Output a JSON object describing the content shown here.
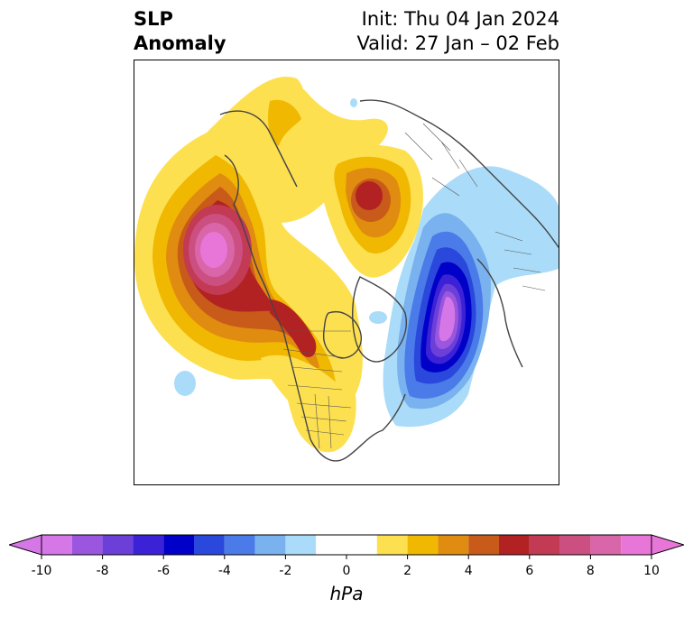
{
  "title": {
    "left_line1": "SLP",
    "left_line2": "Anomaly",
    "right_line1": "Init: Thu 04 Jan 2024",
    "right_line2": "Valid: 27 Jan – 02 Feb"
  },
  "map": {
    "projection": "polar-stereographic",
    "region": "Northern Hemisphere (North Pacific, North America, Arctic, Eurasia)",
    "anomaly_features": [
      {
        "type": "high",
        "location": "northeast Pacific / Gulf of Alaska",
        "peak_hPa": 10
      },
      {
        "type": "high",
        "location": "central Siberia",
        "peak_hPa": 6
      },
      {
        "type": "high",
        "location": "western Canada / Alaska panhandle",
        "peak_hPa": 6
      },
      {
        "type": "low",
        "location": "North Atlantic / Iceland",
        "peak_hPa": -10
      }
    ]
  },
  "colorbar": {
    "unit": "hPa",
    "ticks": [
      "-10",
      "-8",
      "-6",
      "-4",
      "-2",
      "0",
      "2",
      "4",
      "6",
      "8",
      "10"
    ],
    "bins": [
      {
        "from": -10,
        "to": -9,
        "color": "#d577e6"
      },
      {
        "from": -9,
        "to": -8,
        "color": "#9b56e0"
      },
      {
        "from": -8,
        "to": -7,
        "color": "#6c3fd9"
      },
      {
        "from": -7,
        "to": -6,
        "color": "#3b22d6"
      },
      {
        "from": -6,
        "to": -5,
        "color": "#0000c8"
      },
      {
        "from": -5,
        "to": -4,
        "color": "#2a48dc"
      },
      {
        "from": -4,
        "to": -3,
        "color": "#4a7be8"
      },
      {
        "from": -3,
        "to": -2,
        "color": "#79b2ef"
      },
      {
        "from": -2,
        "to": -1,
        "color": "#aadcf9"
      },
      {
        "from": -1,
        "to": 1,
        "color": "#ffffff"
      },
      {
        "from": 1,
        "to": 2,
        "color": "#fde050"
      },
      {
        "from": 2,
        "to": 3,
        "color": "#f0b800"
      },
      {
        "from": 3,
        "to": 4,
        "color": "#e08c10"
      },
      {
        "from": 4,
        "to": 5,
        "color": "#c85a1a"
      },
      {
        "from": 5,
        "to": 6,
        "color": "#b22222"
      },
      {
        "from": 6,
        "to": 7,
        "color": "#c23a54"
      },
      {
        "from": 7,
        "to": 8,
        "color": "#cc4f82"
      },
      {
        "from": 8,
        "to": 9,
        "color": "#d966a8"
      },
      {
        "from": 9,
        "to": 10,
        "color": "#e876d8"
      }
    ],
    "extend_low_color": "#d577e6",
    "extend_high_color": "#e876d8"
  }
}
